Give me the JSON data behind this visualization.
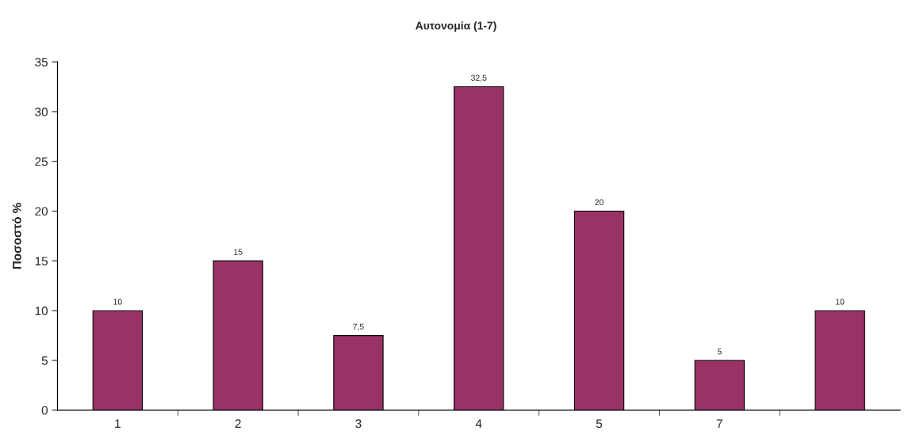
{
  "chart_data": {
    "type": "bar",
    "title": "Αυτονομία (1-7)",
    "ylabel": "Ποσοστό %",
    "categories": [
      "1",
      "2",
      "3",
      "4",
      "5",
      "7",
      null
    ],
    "values": [
      10,
      15,
      7.5,
      32.5,
      20,
      5,
      10
    ],
    "value_labels": [
      "10",
      "15",
      "7,5",
      "32,5",
      "20",
      "5",
      "10"
    ],
    "color": "#993366",
    "ylim": [
      0,
      35
    ],
    "yticks": [
      0,
      5,
      10,
      15,
      20,
      25,
      30,
      35
    ],
    "grid": false,
    "legend": false
  }
}
